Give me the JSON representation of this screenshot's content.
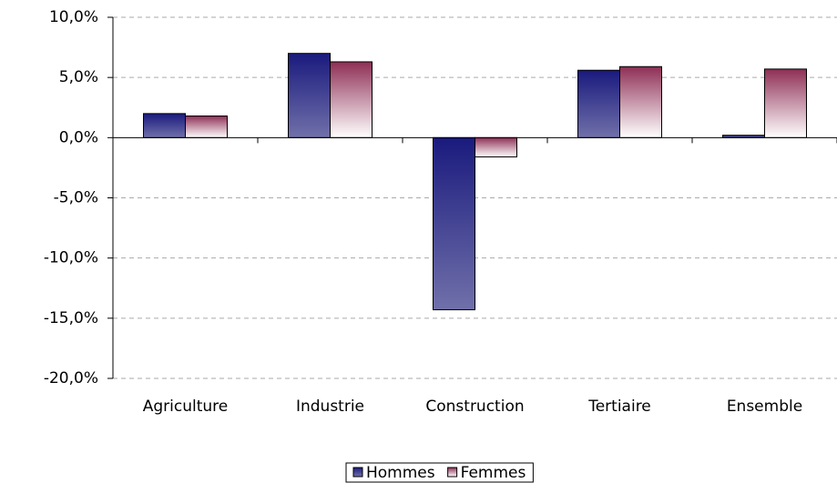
{
  "chart_data": {
    "type": "bar",
    "categories": [
      "Agriculture",
      "Industrie",
      "Construction",
      "Tertiaire",
      "Ensemble"
    ],
    "series": [
      {
        "name": "Hommes",
        "color": "#1a1a7e",
        "values": [
          2.0,
          7.0,
          -14.3,
          5.6,
          0.2
        ]
      },
      {
        "name": "Femmes",
        "color": "#8e2f55",
        "values": [
          1.8,
          6.3,
          -1.6,
          5.9,
          5.7
        ]
      }
    ],
    "ylim": [
      -20,
      10
    ],
    "yticks": [
      {
        "value": -20,
        "label": "-20,0%"
      },
      {
        "value": -15,
        "label": "-15,0%"
      },
      {
        "value": -10,
        "label": "-10,0%"
      },
      {
        "value": -5,
        "label": "-5,0%"
      },
      {
        "value": 0,
        "label": "0,0%"
      },
      {
        "value": 5,
        "label": "5,0%"
      },
      {
        "value": 10,
        "label": "10,0%"
      }
    ],
    "grid": true,
    "legend": "bottom"
  }
}
